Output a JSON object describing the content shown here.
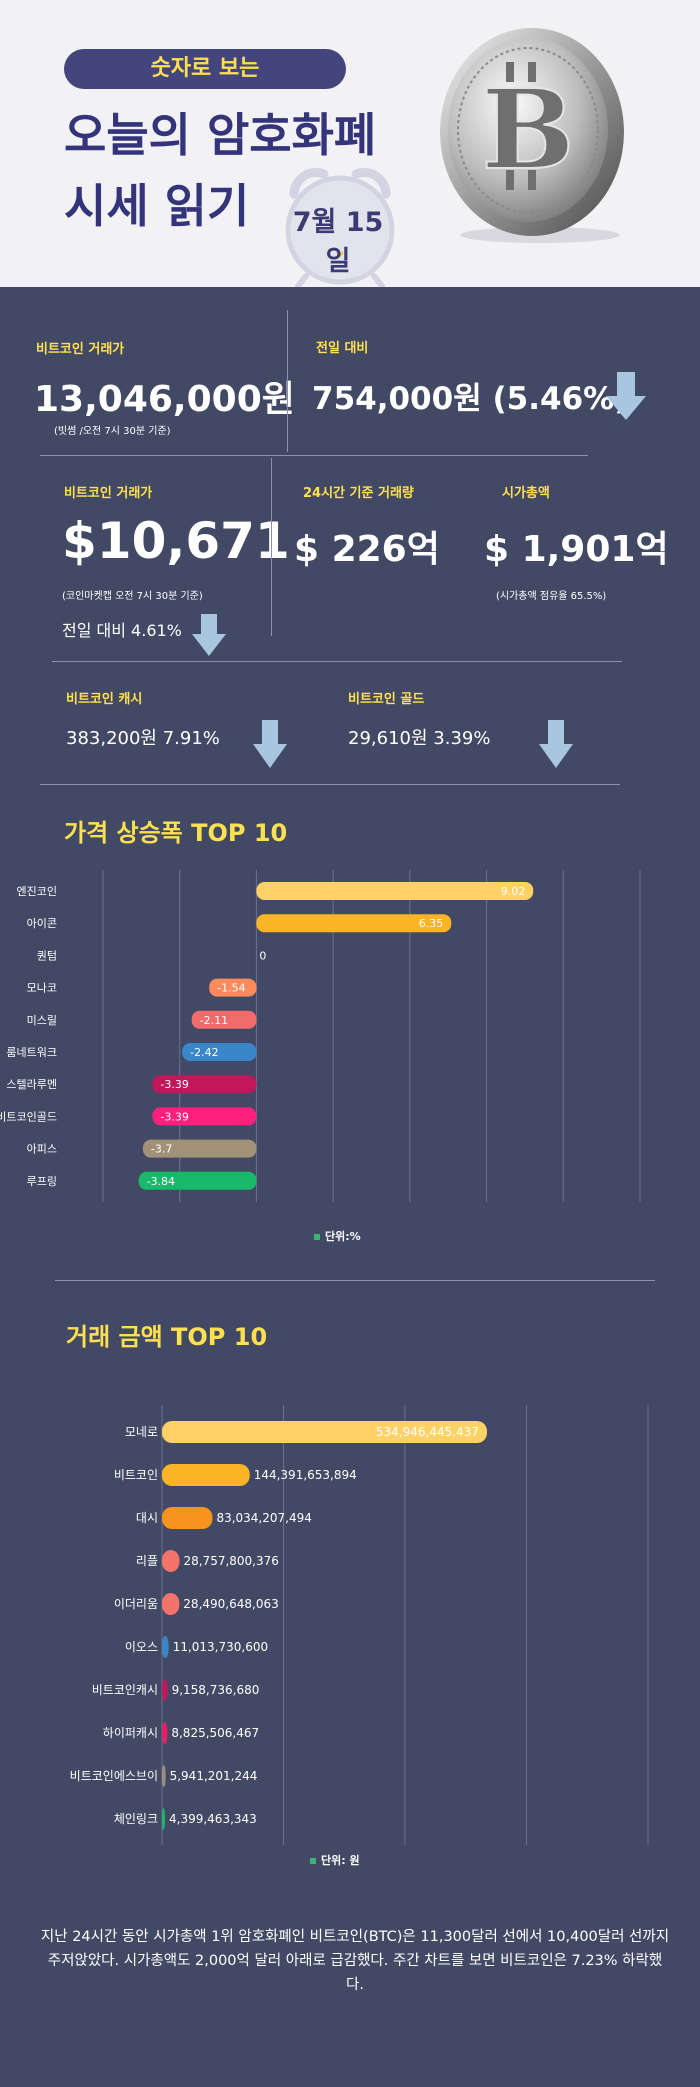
{
  "header": {
    "pill": "숫자로 보는",
    "title_line1": "오늘의 암호화폐",
    "title_line2": "시세 읽기",
    "date": "7월 15일"
  },
  "stats": {
    "btc_krw": {
      "label": "비트코인 거래가",
      "value": "13,046,000원",
      "note": "(빗썸 /오전 7시 30분  기준)"
    },
    "prev_day": {
      "label": "전일 대비",
      "value": "754,000원 (5.46%)"
    },
    "btc_usd": {
      "label": "비트코인 거래가",
      "value": "$10,671",
      "note": "(코인마켓캡 오전 7시 30분 기준)",
      "change": "전일 대비 4.61%"
    },
    "volume": {
      "label": "24시간 기준 거래량",
      "value": "$ 226억"
    },
    "market_cap": {
      "label": "시가총액",
      "value": "$ 1,901억",
      "note": "(시가총액 점유율 65.5%)"
    },
    "bch": {
      "label": "비트코인 캐시",
      "value": "383,200원  7.91%"
    },
    "btg": {
      "label": "비트코인 골드",
      "value": "29,610원   3.39%"
    }
  },
  "colors": {
    "accent": "#ffe04f",
    "background": "#424965",
    "down_arrow": "#a9c6e0"
  },
  "chart_data": [
    {
      "type": "bar",
      "orientation": "horizontal",
      "title": "가격 상승폭 TOP 10",
      "unit_label": "단위:%",
      "categories": [
        "엔진코인",
        "아이콘",
        "퀀텀",
        "모나코",
        "미스릴",
        "룸네트워크",
        "스텔라루멘",
        "비트코인골드",
        "아피스",
        "루프링"
      ],
      "values": [
        9.02,
        6.35,
        0,
        -1.54,
        -2.11,
        -2.42,
        -3.39,
        -3.39,
        -3.7,
        -3.84
      ],
      "value_labels": [
        "9.02",
        "6.35",
        "0",
        "-1.54",
        "-2.11",
        "-2.42",
        "-3.39",
        "-3.39",
        "-3.7",
        "-3.84"
      ],
      "colors": [
        "#ffd166",
        "#fbb424",
        "#ffd166",
        "#ff8a5b",
        "#f26b6b",
        "#3a86c8",
        "#c2185b",
        "#ff1f7d",
        "#a39079",
        "#19b86a"
      ],
      "xlim": [
        -5,
        12.5
      ],
      "grid": true
    },
    {
      "type": "bar",
      "orientation": "horizontal",
      "title": "거래 금액 TOP 10",
      "unit_label": "단위: 원",
      "categories": [
        "모네로",
        "비트코인",
        "대시",
        "리플",
        "이더리움",
        "이오스",
        "비트코인캐시",
        "하이퍼캐시",
        "비트코인에스브이",
        "체인링크"
      ],
      "values": [
        534946445437,
        144391653894,
        83034207494,
        28757800376,
        28490648063,
        11013730600,
        9158736680,
        8825506467,
        5941201244,
        4399463343
      ],
      "value_labels": [
        "534,946,445,437",
        "144,391,653,894",
        "83,034,207,494",
        "28,757,800,376",
        "28,490,648,063",
        "11,013,730,600",
        "9,158,736,680",
        "8,825,506,467",
        "5,941,201,244",
        "4,399,463,343"
      ],
      "colors": [
        "#ffd166",
        "#fbb424",
        "#f7941d",
        "#f4736a",
        "#f4736a",
        "#3a86c8",
        "#c2185b",
        "#e91e63",
        "#a39079",
        "#19b86a"
      ],
      "xlim": [
        0,
        800000000000
      ],
      "grid": true
    }
  ],
  "footer": {
    "text": "지난 24시간 동안 시가총액 1위 암호화폐인 비트코인(BTC)은 11,300달러 선에서 10,400달러 선까지 주저앉았다. 시가총액도 2,000억 달러 아래로 급감했다. 주간 차트를 보면 비트코인은 7.23% 하락했다."
  }
}
